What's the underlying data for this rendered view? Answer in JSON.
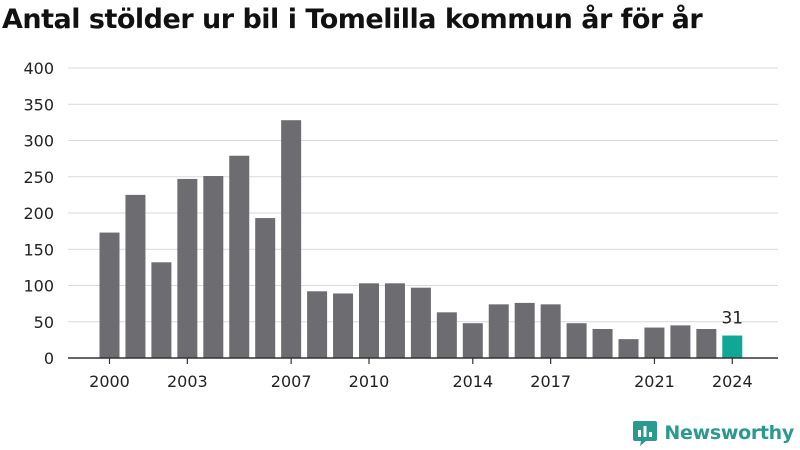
{
  "colors": {
    "bar": "#6d6c71",
    "highlight": "#10a796",
    "grid": "#d9d9d9",
    "axis": "#333333",
    "brand": "#2b9a8e"
  },
  "brand": {
    "name": "Newsworthy",
    "icon": "newsworthy-logo-icon"
  },
  "chart_data": {
    "type": "bar",
    "title": "Antal stölder ur bil i Tomelilla kommun år för år",
    "xlabel": "",
    "ylabel": "",
    "ylim": [
      0,
      400
    ],
    "y_ticks": [
      0,
      50,
      100,
      150,
      200,
      250,
      300,
      350,
      400
    ],
    "x_tick_labels": [
      "2000",
      "2003",
      "2007",
      "2010",
      "2014",
      "2017",
      "2021",
      "2024"
    ],
    "grid": true,
    "categories": [
      "2000",
      "2001",
      "2002",
      "2003",
      "2004",
      "2005",
      "2006",
      "2007",
      "2008",
      "2009",
      "2010",
      "2011",
      "2012",
      "2013",
      "2014",
      "2015",
      "2016",
      "2017",
      "2018",
      "2019",
      "2020",
      "2021",
      "2022",
      "2023",
      "2024"
    ],
    "values": [
      173,
      225,
      132,
      247,
      251,
      279,
      193,
      328,
      92,
      89,
      103,
      103,
      97,
      63,
      48,
      74,
      76,
      74,
      48,
      40,
      26,
      42,
      45,
      40,
      31
    ],
    "highlight_index": 24,
    "annotations": [
      {
        "category": "2024",
        "text": "31"
      }
    ]
  }
}
